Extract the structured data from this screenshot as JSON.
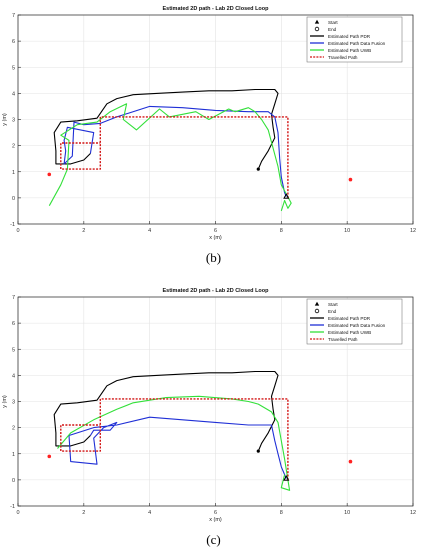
{
  "colors": {
    "pdr": "#000000",
    "fusion": "#1f2fd6",
    "uwb": "#33e03a",
    "travelled": "#d21414",
    "anchor": "#ff2222",
    "grid": "#e3e3e3",
    "axis": "#222222"
  },
  "captions": [
    "(b)",
    "(c)"
  ],
  "chart_data": [
    {
      "type": "line",
      "title": "Estimated 2D path - Lab 2D Closed Loop",
      "xlabel": "x (m)",
      "ylabel": "y (m)",
      "xlim": [
        0,
        12
      ],
      "ylim": [
        -1,
        7
      ],
      "xticks": [
        0,
        2,
        4,
        6,
        8,
        10,
        12
      ],
      "yticks": [
        -1,
        0,
        1,
        2,
        3,
        4,
        5,
        6,
        7
      ],
      "grid": true,
      "legend_position": "top-right",
      "legend": [
        "Start",
        "End",
        "Estimated Path PDR",
        "Estimated Path Data Fusion",
        "Estimated Path UWB",
        "Travelled Path"
      ],
      "markers": {
        "start": [
          [
            8.15,
            0.05
          ],
          [
            8.15,
            0.05
          ]
        ],
        "end": [
          [
            7.3,
            1.1
          ]
        ],
        "anchors": [
          [
            0.95,
            0.9
          ],
          [
            10.1,
            0.7
          ]
        ]
      },
      "series": [
        {
          "name": "Estimated Path PDR",
          "points": [
            [
              7.3,
              1.1
            ],
            [
              7.4,
              1.4
            ],
            [
              7.6,
              1.8
            ],
            [
              7.8,
              2.3
            ],
            [
              7.75,
              2.7
            ],
            [
              7.7,
              3.2
            ],
            [
              7.8,
              3.6
            ],
            [
              7.9,
              4.0
            ],
            [
              7.8,
              4.15
            ],
            [
              7.2,
              4.15
            ],
            [
              6.5,
              4.1
            ],
            [
              5.8,
              4.1
            ],
            [
              5.0,
              4.05
            ],
            [
              4.2,
              4.0
            ],
            [
              3.5,
              3.95
            ],
            [
              3.0,
              3.8
            ],
            [
              2.7,
              3.6
            ],
            [
              2.4,
              3.05
            ],
            [
              1.8,
              2.95
            ],
            [
              1.3,
              2.9
            ],
            [
              1.1,
              2.5
            ],
            [
              1.15,
              1.8
            ],
            [
              1.15,
              1.3
            ],
            [
              1.6,
              1.3
            ],
            [
              2.0,
              1.45
            ],
            [
              2.2,
              1.7
            ]
          ]
        },
        {
          "name": "Estimated Path Data Fusion",
          "points": [
            [
              2.2,
              1.7
            ],
            [
              2.3,
              2.5
            ],
            [
              1.5,
              2.7
            ],
            [
              1.4,
              2.2
            ],
            [
              1.45,
              1.8
            ],
            [
              1.4,
              1.3
            ],
            [
              1.65,
              1.6
            ],
            [
              1.7,
              2.9
            ],
            [
              2.0,
              2.8
            ],
            [
              2.5,
              2.85
            ],
            [
              3.0,
              3.1
            ],
            [
              4.0,
              3.5
            ],
            [
              5.0,
              3.45
            ],
            [
              6.0,
              3.35
            ],
            [
              7.0,
              3.3
            ],
            [
              7.6,
              3.3
            ],
            [
              7.8,
              3.1
            ],
            [
              7.9,
              2.5
            ],
            [
              7.95,
              1.5
            ],
            [
              8.0,
              0.8
            ],
            [
              8.1,
              0.2
            ],
            [
              8.15,
              0.05
            ]
          ]
        },
        {
          "name": "Estimated Path UWB",
          "points": [
            [
              0.95,
              -0.3
            ],
            [
              1.3,
              0.5
            ],
            [
              1.5,
              1.1
            ],
            [
              1.55,
              2.2
            ],
            [
              1.3,
              2.4
            ],
            [
              1.8,
              2.8
            ],
            [
              2.4,
              2.9
            ],
            [
              2.8,
              3.3
            ],
            [
              3.3,
              3.6
            ],
            [
              3.2,
              3.0
            ],
            [
              3.6,
              2.6
            ],
            [
              4.3,
              3.4
            ],
            [
              4.6,
              3.1
            ],
            [
              5.4,
              3.3
            ],
            [
              5.8,
              3.0
            ],
            [
              6.4,
              3.4
            ],
            [
              6.6,
              3.3
            ],
            [
              7.0,
              3.45
            ],
            [
              7.2,
              3.3
            ],
            [
              7.4,
              3.0
            ],
            [
              7.6,
              2.6
            ],
            [
              7.9,
              1.2
            ],
            [
              8.0,
              0.5
            ],
            [
              8.3,
              -0.2
            ],
            [
              8.2,
              -0.4
            ],
            [
              8.1,
              -0.1
            ],
            [
              8.0,
              -0.5
            ]
          ]
        },
        {
          "name": "Travelled Path",
          "points": [
            [
              8.2,
              0.0
            ],
            [
              8.2,
              3.1
            ],
            [
              2.5,
              3.1
            ],
            [
              2.5,
              1.1
            ],
            [
              1.3,
              1.1
            ],
            [
              1.3,
              2.1
            ],
            [
              2.5,
              2.1
            ]
          ]
        }
      ]
    },
    {
      "type": "line",
      "title": "Estimated 2D path - Lab 2D Closed Loop",
      "xlabel": "x (m)",
      "ylabel": "y (m)",
      "xlim": [
        0,
        12
      ],
      "ylim": [
        -1,
        7
      ],
      "xticks": [
        0,
        2,
        4,
        6,
        8,
        10,
        12
      ],
      "yticks": [
        -1,
        0,
        1,
        2,
        3,
        4,
        5,
        6,
        7
      ],
      "grid": true,
      "legend_position": "top-right",
      "legend": [
        "Start",
        "End",
        "Estimated Path PDR",
        "Estimated Path Data Fusion",
        "Estimated Path UWB",
        "Travelled Path"
      ],
      "markers": {
        "start": [
          [
            8.15,
            0.05
          ],
          [
            8.15,
            0.05
          ]
        ],
        "end": [
          [
            7.3,
            1.1
          ]
        ],
        "anchors": [
          [
            0.95,
            0.9
          ],
          [
            10.1,
            0.7
          ]
        ]
      },
      "series": [
        {
          "name": "Estimated Path PDR",
          "points": [
            [
              7.3,
              1.1
            ],
            [
              7.4,
              1.4
            ],
            [
              7.6,
              1.8
            ],
            [
              7.8,
              2.3
            ],
            [
              7.75,
              2.7
            ],
            [
              7.7,
              3.2
            ],
            [
              7.8,
              3.6
            ],
            [
              7.9,
              4.0
            ],
            [
              7.8,
              4.15
            ],
            [
              7.2,
              4.15
            ],
            [
              6.5,
              4.1
            ],
            [
              5.8,
              4.1
            ],
            [
              5.0,
              4.05
            ],
            [
              4.2,
              4.0
            ],
            [
              3.5,
              3.95
            ],
            [
              3.0,
              3.8
            ],
            [
              2.7,
              3.6
            ],
            [
              2.4,
              3.05
            ],
            [
              1.8,
              2.95
            ],
            [
              1.3,
              2.9
            ],
            [
              1.1,
              2.5
            ],
            [
              1.15,
              1.8
            ],
            [
              1.15,
              1.3
            ],
            [
              1.6,
              1.3
            ],
            [
              2.0,
              1.45
            ],
            [
              2.2,
              1.7
            ]
          ]
        },
        {
          "name": "Estimated Path Data Fusion",
          "points": [
            [
              2.2,
              1.7
            ],
            [
              2.3,
              1.9
            ],
            [
              2.8,
              1.9
            ],
            [
              3.0,
              2.2
            ],
            [
              2.6,
              2.0
            ],
            [
              2.3,
              1.6
            ],
            [
              2.4,
              0.6
            ],
            [
              1.6,
              0.7
            ],
            [
              1.55,
              1.7
            ],
            [
              2.3,
              2.0
            ],
            [
              3.0,
              2.1
            ],
            [
              4.0,
              2.4
            ],
            [
              5.0,
              2.3
            ],
            [
              6.0,
              2.2
            ],
            [
              7.0,
              2.1
            ],
            [
              7.7,
              2.1
            ],
            [
              7.8,
              1.5
            ],
            [
              7.9,
              1.0
            ],
            [
              8.0,
              0.5
            ],
            [
              8.15,
              0.05
            ]
          ]
        },
        {
          "name": "Estimated Path UWB",
          "points": [
            [
              1.2,
              1.2
            ],
            [
              1.6,
              1.8
            ],
            [
              2.3,
              2.3
            ],
            [
              3.0,
              2.7
            ],
            [
              3.5,
              2.95
            ],
            [
              4.5,
              3.15
            ],
            [
              5.5,
              3.2
            ],
            [
              6.5,
              3.1
            ],
            [
              7.0,
              3.0
            ],
            [
              7.3,
              2.9
            ],
            [
              7.7,
              2.6
            ],
            [
              7.9,
              2.2
            ],
            [
              8.0,
              1.5
            ],
            [
              8.1,
              0.8
            ],
            [
              8.2,
              0.0
            ],
            [
              8.25,
              -0.4
            ],
            [
              8.0,
              -0.3
            ],
            [
              8.1,
              0.2
            ]
          ]
        },
        {
          "name": "Travelled Path",
          "points": [
            [
              8.2,
              0.0
            ],
            [
              8.2,
              3.1
            ],
            [
              2.5,
              3.1
            ],
            [
              2.5,
              1.1
            ],
            [
              1.3,
              1.1
            ],
            [
              1.3,
              2.1
            ],
            [
              2.5,
              2.1
            ]
          ]
        }
      ]
    }
  ]
}
